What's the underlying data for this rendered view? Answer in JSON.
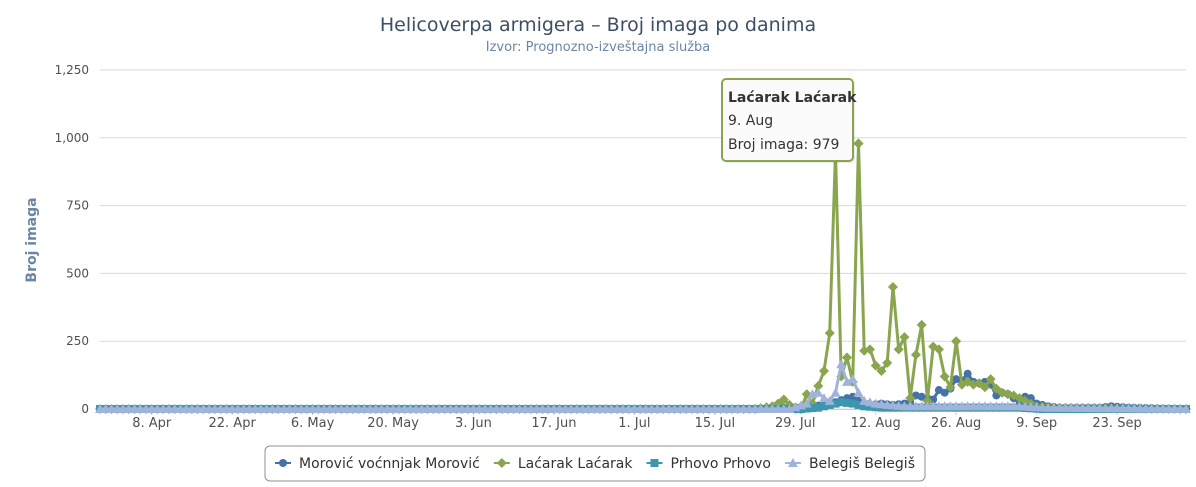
{
  "chart_data": {
    "type": "line",
    "title": "Helicoverpa armigera – Broj imaga po danima",
    "subtitle": "Izvor: Prognozno-izveštajna služba",
    "ylabel": "Broj imaga",
    "xlabel": "",
    "ylim": [
      0,
      1250
    ],
    "yticks": [
      0,
      250,
      500,
      750,
      1000,
      1250
    ],
    "ytick_labels": [
      "0",
      "250",
      "500",
      "750",
      "1,000",
      "1,250"
    ],
    "xlim": [
      "2025-03-30",
      "2025-10-05"
    ],
    "xticks": [
      "2025-04-08",
      "2025-04-22",
      "2025-05-06",
      "2025-05-20",
      "2025-06-03",
      "2025-06-17",
      "2025-07-01",
      "2025-07-15",
      "2025-07-29",
      "2025-08-12",
      "2025-08-26",
      "2025-09-09",
      "2025-09-23"
    ],
    "xtick_labels": [
      "8. Apr",
      "22. Apr",
      "6. May",
      "20. May",
      "3. Jun",
      "17. Jun",
      "1. Jul",
      "15. Jul",
      "29. Jul",
      "12. Aug",
      "26. Aug",
      "9. Sep",
      "23. Sep"
    ],
    "grid": true,
    "legend_position": "bottom",
    "series": [
      {
        "name": "Morović voćnnjak Morović",
        "color": "#4572a7",
        "marker": "circle",
        "points": [
          [
            "2025-03-30",
            0
          ],
          [
            "2025-07-20",
            0
          ],
          [
            "2025-07-28",
            5
          ],
          [
            "2025-08-01",
            10
          ],
          [
            "2025-08-03",
            15
          ],
          [
            "2025-08-05",
            25
          ],
          [
            "2025-08-07",
            40
          ],
          [
            "2025-08-08",
            45
          ],
          [
            "2025-08-09",
            30
          ],
          [
            "2025-08-10",
            20
          ],
          [
            "2025-08-11",
            15
          ],
          [
            "2025-08-13",
            20
          ],
          [
            "2025-08-15",
            15
          ],
          [
            "2025-08-17",
            20
          ],
          [
            "2025-08-18",
            25
          ],
          [
            "2025-08-19",
            50
          ],
          [
            "2025-08-20",
            45
          ],
          [
            "2025-08-21",
            40
          ],
          [
            "2025-08-22",
            35
          ],
          [
            "2025-08-23",
            70
          ],
          [
            "2025-08-24",
            60
          ],
          [
            "2025-08-25",
            75
          ],
          [
            "2025-08-26",
            110
          ],
          [
            "2025-08-27",
            105
          ],
          [
            "2025-08-28",
            130
          ],
          [
            "2025-08-29",
            100
          ],
          [
            "2025-08-30",
            95
          ],
          [
            "2025-08-31",
            100
          ],
          [
            "2025-09-01",
            90
          ],
          [
            "2025-09-02",
            50
          ],
          [
            "2025-09-03",
            60
          ],
          [
            "2025-09-04",
            55
          ],
          [
            "2025-09-05",
            40
          ],
          [
            "2025-09-06",
            30
          ],
          [
            "2025-09-07",
            45
          ],
          [
            "2025-09-08",
            40
          ],
          [
            "2025-09-09",
            20
          ],
          [
            "2025-09-11",
            10
          ],
          [
            "2025-09-13",
            5
          ],
          [
            "2025-09-20",
            5
          ],
          [
            "2025-09-22",
            10
          ],
          [
            "2025-09-25",
            5
          ],
          [
            "2025-10-05",
            0
          ]
        ]
      },
      {
        "name": "Laćarak Laćarak",
        "color": "#89a54e",
        "marker": "diamond",
        "points": [
          [
            "2025-03-30",
            0
          ],
          [
            "2025-07-22",
            0
          ],
          [
            "2025-07-25",
            10
          ],
          [
            "2025-07-26",
            20
          ],
          [
            "2025-07-27",
            35
          ],
          [
            "2025-07-28",
            15
          ],
          [
            "2025-07-29",
            5
          ],
          [
            "2025-07-30",
            0
          ],
          [
            "2025-07-31",
            55
          ],
          [
            "2025-08-01",
            20
          ],
          [
            "2025-08-02",
            85
          ],
          [
            "2025-08-03",
            140
          ],
          [
            "2025-08-04",
            280
          ],
          [
            "2025-08-05",
            950
          ],
          [
            "2025-08-06",
            120
          ],
          [
            "2025-08-07",
            190
          ],
          [
            "2025-08-08",
            100
          ],
          [
            "2025-08-09",
            979
          ],
          [
            "2025-08-10",
            215
          ],
          [
            "2025-08-11",
            220
          ],
          [
            "2025-08-12",
            160
          ],
          [
            "2025-08-13",
            140
          ],
          [
            "2025-08-14",
            170
          ],
          [
            "2025-08-15",
            450
          ],
          [
            "2025-08-16",
            220
          ],
          [
            "2025-08-17",
            265
          ],
          [
            "2025-08-18",
            40
          ],
          [
            "2025-08-19",
            200
          ],
          [
            "2025-08-20",
            310
          ],
          [
            "2025-08-21",
            30
          ],
          [
            "2025-08-22",
            230
          ],
          [
            "2025-08-23",
            220
          ],
          [
            "2025-08-24",
            120
          ],
          [
            "2025-08-25",
            80
          ],
          [
            "2025-08-26",
            250
          ],
          [
            "2025-08-27",
            90
          ],
          [
            "2025-08-28",
            100
          ],
          [
            "2025-08-29",
            90
          ],
          [
            "2025-08-30",
            95
          ],
          [
            "2025-08-31",
            80
          ],
          [
            "2025-09-01",
            110
          ],
          [
            "2025-09-02",
            75
          ],
          [
            "2025-09-03",
            60
          ],
          [
            "2025-09-04",
            55
          ],
          [
            "2025-09-05",
            50
          ],
          [
            "2025-09-06",
            40
          ],
          [
            "2025-09-07",
            30
          ],
          [
            "2025-09-09",
            10
          ],
          [
            "2025-09-12",
            5
          ],
          [
            "2025-10-05",
            0
          ]
        ]
      },
      {
        "name": "Prhovo Prhovo",
        "color": "#3d96ae",
        "marker": "square",
        "points": [
          [
            "2025-03-30",
            0
          ],
          [
            "2025-07-30",
            0
          ],
          [
            "2025-08-02",
            5
          ],
          [
            "2025-08-04",
            15
          ],
          [
            "2025-08-06",
            25
          ],
          [
            "2025-08-08",
            20
          ],
          [
            "2025-08-10",
            10
          ],
          [
            "2025-08-13",
            5
          ],
          [
            "2025-08-16",
            5
          ],
          [
            "2025-08-20",
            5
          ],
          [
            "2025-08-24",
            5
          ],
          [
            "2025-09-01",
            5
          ],
          [
            "2025-09-06",
            5
          ],
          [
            "2025-09-10",
            0
          ],
          [
            "2025-10-05",
            0
          ]
        ]
      },
      {
        "name": "Belegiš Belegiš",
        "color": "#a0b3d8",
        "marker": "triangle",
        "points": [
          [
            "2025-03-30",
            0
          ],
          [
            "2025-07-28",
            0
          ],
          [
            "2025-07-31",
            20
          ],
          [
            "2025-08-01",
            55
          ],
          [
            "2025-08-02",
            60
          ],
          [
            "2025-08-03",
            40
          ],
          [
            "2025-08-04",
            30
          ],
          [
            "2025-08-05",
            60
          ],
          [
            "2025-08-06",
            165
          ],
          [
            "2025-08-07",
            100
          ],
          [
            "2025-08-08",
            110
          ],
          [
            "2025-08-09",
            60
          ],
          [
            "2025-08-10",
            30
          ],
          [
            "2025-08-12",
            20
          ],
          [
            "2025-08-14",
            15
          ],
          [
            "2025-08-17",
            10
          ],
          [
            "2025-08-20",
            10
          ],
          [
            "2025-08-25",
            10
          ],
          [
            "2025-09-01",
            10
          ],
          [
            "2025-09-06",
            10
          ],
          [
            "2025-09-10",
            5
          ],
          [
            "2025-10-05",
            0
          ]
        ]
      }
    ],
    "tooltip": {
      "series": "Laćarak Laćarak",
      "date_label": "9. Aug",
      "value_label": "Broj imaga: 979",
      "x": "2025-08-09",
      "y": 979
    }
  }
}
